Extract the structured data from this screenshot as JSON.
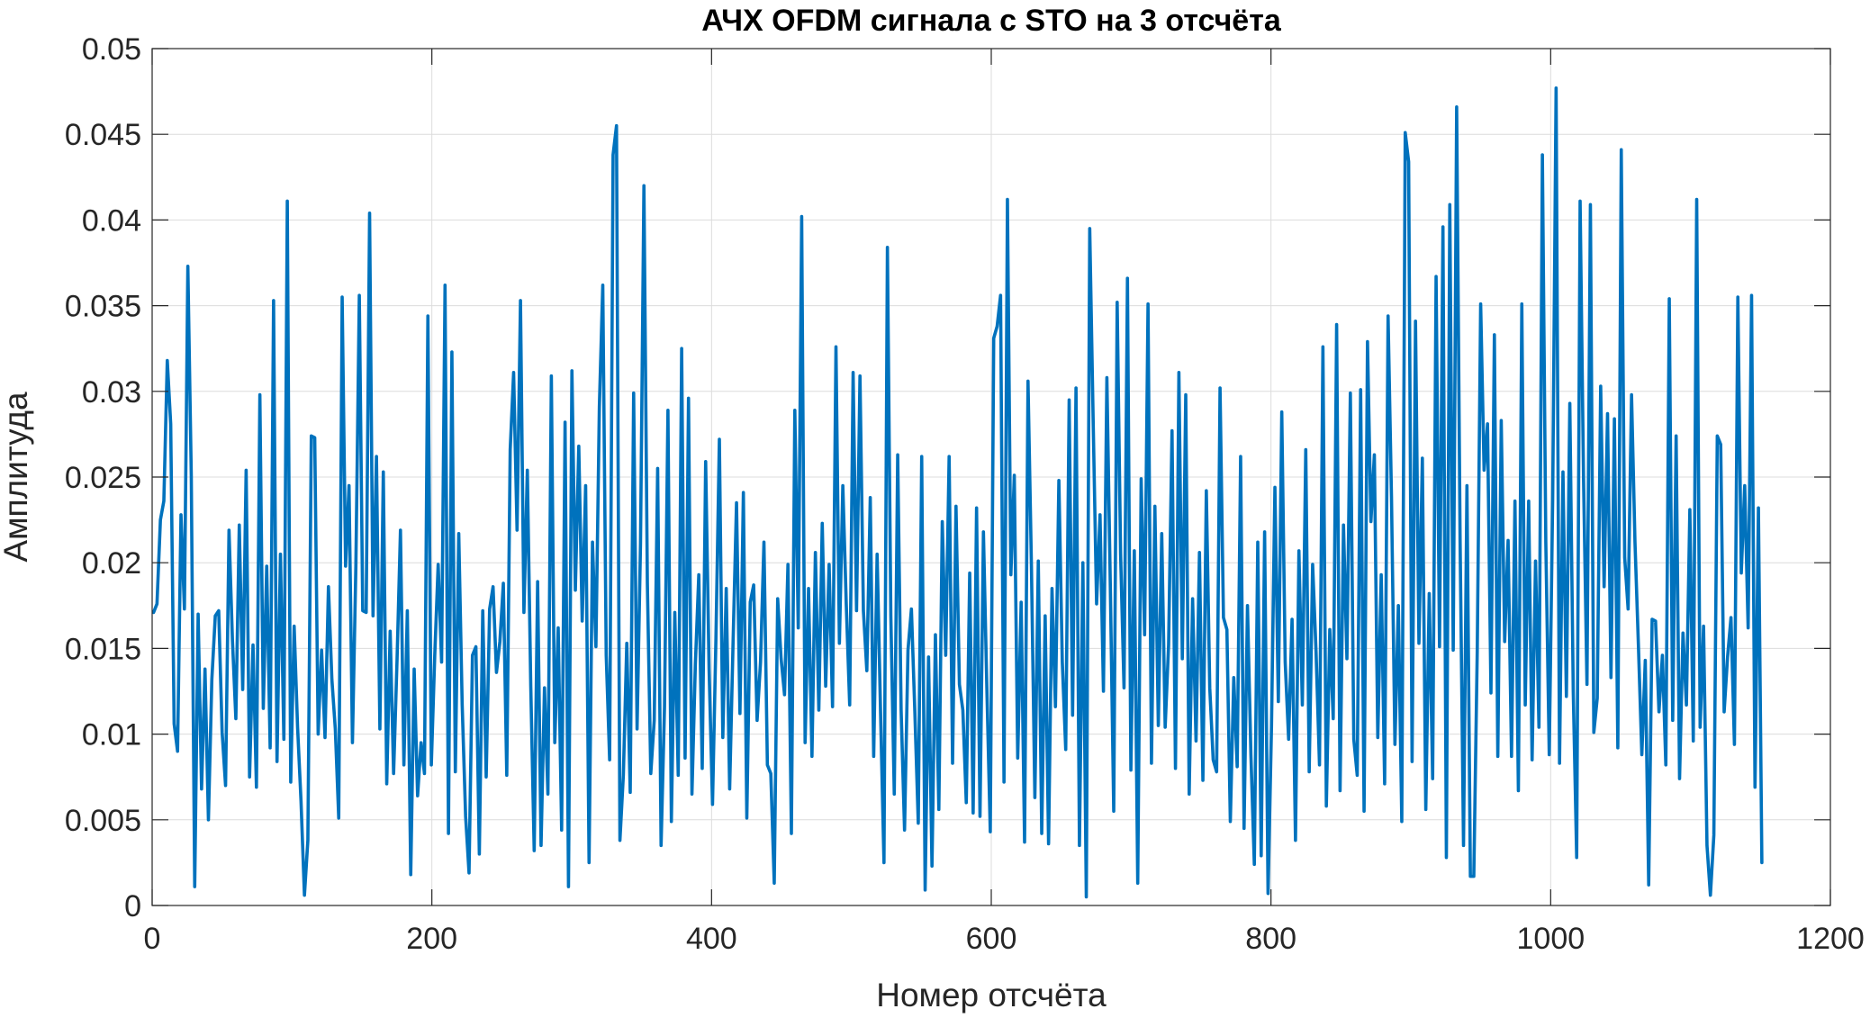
{
  "chart_data": {
    "type": "line",
    "title": "АЧХ OFDM сигнала с STO на 3 отсчёта",
    "xlabel": "Номер отсчёта",
    "ylabel": "Амплитуда",
    "xlim": [
      0,
      1200
    ],
    "ylim": [
      0,
      0.05
    ],
    "xticks": [
      0,
      200,
      400,
      600,
      800,
      1000,
      1200
    ],
    "xtick_labels": [
      "0",
      "200",
      "400",
      "600",
      "800",
      "1000",
      "1200"
    ],
    "yticks": [
      0,
      0.005,
      0.01,
      0.015,
      0.02,
      0.025,
      0.03,
      0.035,
      0.04,
      0.045,
      0.05
    ],
    "ytick_labels": [
      "0",
      "0.005",
      "0.01",
      "0.015",
      "0.02",
      "0.025",
      "0.03",
      "0.035",
      "0.04",
      "0.045",
      "0.05"
    ],
    "grid": true,
    "line_color": "#0072BD",
    "series": [
      {
        "x_start": 1,
        "x_step": 1,
        "values": [
          0.0171,
          0.0176,
          0.0225,
          0.0236,
          0.0318,
          0.0281,
          0.0106,
          0.009,
          0.0228,
          0.0173,
          0.0373,
          0.0251,
          0.0011,
          0.017,
          0.0068,
          0.0138,
          0.005,
          0.0132,
          0.0169,
          0.0172,
          0.0101,
          0.007,
          0.0219,
          0.0155,
          0.0109,
          0.0222,
          0.0126,
          0.0254,
          0.0075,
          0.0152,
          0.0069,
          0.0298,
          0.0115,
          0.0198,
          0.0092,
          0.0353,
          0.0084,
          0.0205,
          0.0097,
          0.0411,
          0.0072,
          0.0163,
          0.0104,
          0.0061,
          0.0006,
          0.0038,
          0.0274,
          0.0273,
          0.01,
          0.0149,
          0.0098,
          0.0186,
          0.0132,
          0.0103,
          0.0051,
          0.0355,
          0.0198,
          0.0245,
          0.0095,
          0.0198,
          0.0356,
          0.0172,
          0.0171,
          0.0404,
          0.0169,
          0.0262,
          0.0103,
          0.0253,
          0.0071,
          0.016,
          0.0077,
          0.0143,
          0.0219,
          0.0082,
          0.0172,
          0.0018,
          0.0138,
          0.0064,
          0.0095,
          0.0077,
          0.0344,
          0.0082,
          0.0146,
          0.0199,
          0.0142,
          0.0362,
          0.0042,
          0.0323,
          0.0078,
          0.0217,
          0.0117,
          0.0052,
          0.0019,
          0.0146,
          0.0151,
          0.003,
          0.0172,
          0.0075,
          0.0173,
          0.0186,
          0.0136,
          0.0154,
          0.0188,
          0.0076,
          0.0266,
          0.0311,
          0.0219,
          0.0353,
          0.0171,
          0.0254,
          0.0128,
          0.0032,
          0.0189,
          0.0035,
          0.0127,
          0.0065,
          0.0309,
          0.0095,
          0.0162,
          0.0044,
          0.0282,
          0.0011,
          0.0312,
          0.0184,
          0.0268,
          0.0166,
          0.0245,
          0.0025,
          0.0212,
          0.0151,
          0.0291,
          0.0362,
          0.0146,
          0.0085,
          0.0438,
          0.0455,
          0.0038,
          0.0076,
          0.0153,
          0.0066,
          0.0299,
          0.0103,
          0.0211,
          0.042,
          0.0188,
          0.0077,
          0.0108,
          0.0255,
          0.0035,
          0.0116,
          0.0289,
          0.0049,
          0.0171,
          0.0076,
          0.0325,
          0.0086,
          0.0296,
          0.0065,
          0.0141,
          0.0193,
          0.008,
          0.0259,
          0.0138,
          0.0059,
          0.0156,
          0.0272,
          0.0098,
          0.0185,
          0.0068,
          0.0154,
          0.0235,
          0.0112,
          0.0241,
          0.0051,
          0.0177,
          0.0187,
          0.0108,
          0.0142,
          0.0212,
          0.0082,
          0.0077,
          0.0013,
          0.0179,
          0.0144,
          0.0123,
          0.0199,
          0.0042,
          0.0289,
          0.0162,
          0.0402,
          0.0095,
          0.0185,
          0.0087,
          0.0206,
          0.0114,
          0.0223,
          0.0128,
          0.0199,
          0.0116,
          0.0326,
          0.0153,
          0.0245,
          0.0176,
          0.0117,
          0.0311,
          0.0172,
          0.0309,
          0.0172,
          0.0137,
          0.0238,
          0.0087,
          0.0205,
          0.0113,
          0.0025,
          0.0384,
          0.0169,
          0.0065,
          0.0263,
          0.0114,
          0.0044,
          0.0149,
          0.0173,
          0.0113,
          0.0048,
          0.0262,
          0.0009,
          0.0145,
          0.0023,
          0.0158,
          0.0056,
          0.0224,
          0.0146,
          0.0262,
          0.0083,
          0.0233,
          0.0129,
          0.0114,
          0.006,
          0.0194,
          0.0054,
          0.0232,
          0.0052,
          0.0218,
          0.0127,
          0.0043,
          0.0331,
          0.0338,
          0.0356,
          0.0072,
          0.0412,
          0.0193,
          0.0251,
          0.0086,
          0.0177,
          0.0037,
          0.0306,
          0.0198,
          0.0063,
          0.0201,
          0.0042,
          0.0169,
          0.0036,
          0.0185,
          0.0116,
          0.0248,
          0.0142,
          0.0091,
          0.0295,
          0.0111,
          0.0302,
          0.0035,
          0.02,
          0.0005,
          0.0395,
          0.0283,
          0.0176,
          0.0228,
          0.0125,
          0.0308,
          0.0187,
          0.0055,
          0.0352,
          0.0205,
          0.0127,
          0.0366,
          0.0079,
          0.0207,
          0.0013,
          0.0249,
          0.0158,
          0.0351,
          0.0083,
          0.0233,
          0.0105,
          0.0217,
          0.0104,
          0.0152,
          0.0277,
          0.008,
          0.0311,
          0.0144,
          0.0298,
          0.0065,
          0.0179,
          0.0096,
          0.0206,
          0.0073,
          0.0242,
          0.0127,
          0.0085,
          0.0078,
          0.0302,
          0.0168,
          0.0161,
          0.0049,
          0.0133,
          0.0081,
          0.0262,
          0.0045,
          0.0175,
          0.0088,
          0.0024,
          0.0212,
          0.0029,
          0.0218,
          0.0007,
          0.0104,
          0.0244,
          0.0119,
          0.0288,
          0.0142,
          0.0097,
          0.0167,
          0.0038,
          0.0207,
          0.0117,
          0.0266,
          0.0078,
          0.0199,
          0.0148,
          0.0082,
          0.0326,
          0.0058,
          0.0161,
          0.0109,
          0.0339,
          0.0067,
          0.0222,
          0.0144,
          0.0299,
          0.0097,
          0.0076,
          0.0301,
          0.0055,
          0.0329,
          0.0224,
          0.0263,
          0.0098,
          0.0193,
          0.0071,
          0.0344,
          0.0238,
          0.0094,
          0.0175,
          0.0049,
          0.0451,
          0.0434,
          0.0084,
          0.0341,
          0.0153,
          0.0261,
          0.0056,
          0.0182,
          0.0074,
          0.0367,
          0.0151,
          0.0396,
          0.0028,
          0.0409,
          0.0149,
          0.0466,
          0.0214,
          0.0035,
          0.0245,
          0.0017,
          0.0017,
          0.0148,
          0.0351,
          0.0254,
          0.0281,
          0.0124,
          0.0333,
          0.0087,
          0.0283,
          0.0154,
          0.0213,
          0.0087,
          0.0236,
          0.0067,
          0.0351,
          0.0117,
          0.0236,
          0.0085,
          0.0201,
          0.0104,
          0.0438,
          0.0212,
          0.0088,
          0.0237,
          0.0477,
          0.0083,
          0.0253,
          0.0122,
          0.0293,
          0.0125,
          0.0028,
          0.0411,
          0.0249,
          0.0129,
          0.0409,
          0.0101,
          0.0121,
          0.0303,
          0.0186,
          0.0287,
          0.0133,
          0.0284,
          0.0092,
          0.0441,
          0.0203,
          0.0173,
          0.0298,
          0.0212,
          0.0152,
          0.0088,
          0.0143,
          0.0012,
          0.0167,
          0.0166,
          0.0113,
          0.0146,
          0.0082,
          0.0354,
          0.0108,
          0.0274,
          0.0074,
          0.0159,
          0.0117,
          0.0231,
          0.0096,
          0.0412,
          0.0104,
          0.0163,
          0.0035,
          0.0006,
          0.0041,
          0.0274,
          0.0269,
          0.0113,
          0.0145,
          0.0168,
          0.0094,
          0.0355,
          0.0194,
          0.0245,
          0.0162,
          0.0356,
          0.0069,
          0.0232,
          0.0025
        ]
      }
    ]
  }
}
